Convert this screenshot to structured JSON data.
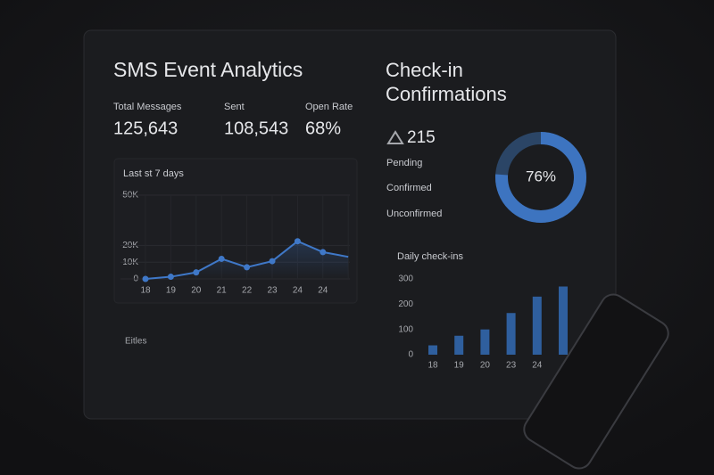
{
  "dashboard": {
    "title": "SMS Event Analytics",
    "stats": [
      {
        "label": "Total Messages",
        "value": "125,643"
      },
      {
        "label": "Sent",
        "value": "108,543"
      },
      {
        "label": "Open Rate",
        "value": "68%"
      }
    ],
    "footer_label": "Eitles"
  },
  "checkins": {
    "title_lines": [
      "Check-in",
      "Confirmations"
    ],
    "count": "215",
    "statuses": [
      "Pending",
      "Confirmed",
      "Unconfirmed"
    ]
  },
  "chart_data": [
    {
      "type": "line",
      "title": "Last st 7 days",
      "categories": [
        "18",
        "19",
        "20",
        "21",
        "22",
        "23",
        "24",
        "24",
        null
      ],
      "values": [
        0,
        1300,
        3900,
        12000,
        7000,
        10600,
        22500,
        16000,
        13200
      ],
      "ylim": [
        0,
        50000
      ],
      "yticks": [
        0,
        {
          "value": 10000,
          "label": "10K"
        },
        {
          "value": 20000,
          "label": "20K"
        },
        {
          "value": 50000,
          "label": "50K"
        }
      ],
      "color": "#3f78c8",
      "grid": true
    },
    {
      "type": "pie",
      "values": [
        76
      ],
      "value_labels": [
        "76%"
      ],
      "color": "#3d74c0",
      "track_color": "#2b4566"
    },
    {
      "type": "bar",
      "title": "Daily check-ins",
      "categories": [
        "18",
        "19",
        "20",
        "23",
        "24",
        null
      ],
      "values": [
        37,
        75,
        100,
        165,
        230,
        270
      ],
      "ylim": [
        0,
        300
      ],
      "yticks": [
        0,
        100,
        200,
        300
      ],
      "color": "#2f5f9e",
      "grid": false
    }
  ]
}
